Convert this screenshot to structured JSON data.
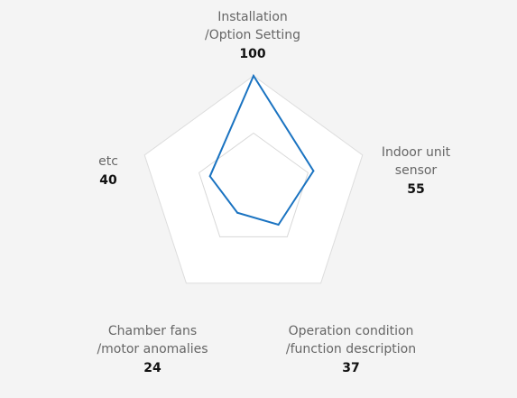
{
  "chart_data": {
    "type": "radar",
    "axes": [
      {
        "label_lines": [
          "Installation",
          "/Option Setting"
        ],
        "value": 100,
        "value_text": "100"
      },
      {
        "label_lines": [
          "Indoor unit",
          "sensor"
        ],
        "value": 55,
        "value_text": "55"
      },
      {
        "label_lines": [
          "Operation condition",
          "/function description"
        ],
        "value": 37,
        "value_text": "37"
      },
      {
        "label_lines": [
          "Chamber fans",
          "/motor anomalies"
        ],
        "value": 24,
        "value_text": "24"
      },
      {
        "label_lines": [
          "etc"
        ],
        "value": 40,
        "value_text": "40"
      }
    ],
    "max": 100,
    "grid_levels": [
      0.5,
      1.0
    ],
    "colors": {
      "series": "#1a73c1",
      "grid_fill": "#ffffff",
      "grid_line": "#dddddd",
      "inner_grid_line": "#d8d8d8",
      "background": "#f4f4f4"
    }
  }
}
